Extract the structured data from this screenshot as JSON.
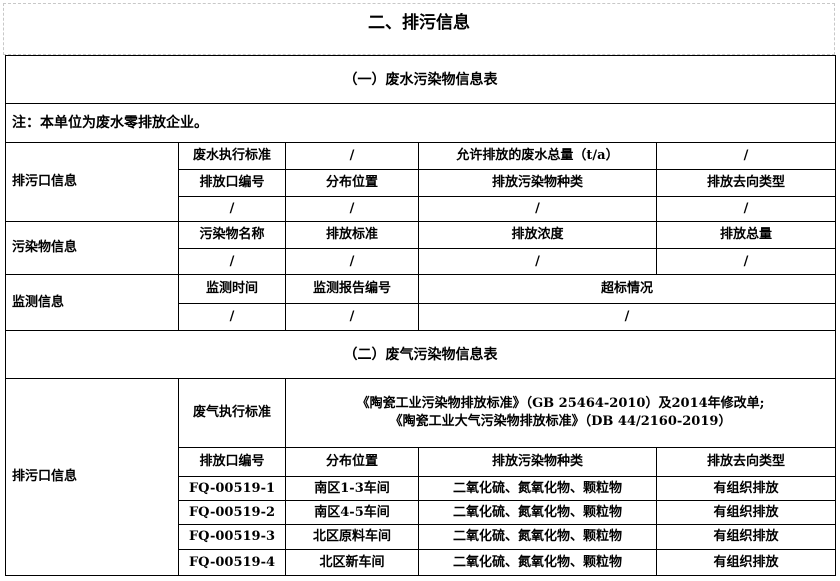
{
  "title": "二、排污信息",
  "wastewater": {
    "header": "（一）废水污染物信息表",
    "note": "注：本单位为废水零排放企业。",
    "outlet_label": "排污口信息",
    "standard_label": "废水执行标准",
    "standard_value": "/",
    "total_label": "允许排放的废水总量（t/a）",
    "total_value": "/",
    "outlet_cols": [
      "排放口编号",
      "分布位置",
      "排放污染物种类",
      "排放去向类型"
    ],
    "outlet_vals": [
      "/",
      "/",
      "/",
      "/"
    ],
    "pollutant_label": "污染物信息",
    "pollutant_cols": [
      "污染物名称",
      "排放标准",
      "排放浓度",
      "排放总量"
    ],
    "pollutant_vals": [
      "/",
      "/",
      "/",
      "/"
    ],
    "monitor_label": "监测信息",
    "monitor_cols": [
      "监测时间",
      "监测报告编号",
      "超标情况"
    ],
    "monitor_vals": [
      "/",
      "/",
      "/"
    ]
  },
  "exhaust": {
    "header": "（二）废气污染物信息表",
    "outlet_label": "排污口信息",
    "standard_label": "废气执行标准",
    "standard_lines": [
      "《陶瓷工业污染物排放标准》（GB 25464-2010）及2014年修改单;",
      "《陶瓷工业大气污染物排放标准》（DB 44/2160-2019）"
    ],
    "cols": [
      "排放口编号",
      "分布位置",
      "排放污染物种类",
      "排放去向类型"
    ],
    "rows": [
      [
        "FQ-00519-1",
        "南区1-3车间",
        "二氧化硫、氮氧化物、颗粒物",
        "有组织排放"
      ],
      [
        "FQ-00519-2",
        "南区4-5车间",
        "二氧化硫、氮氧化物、颗粒物",
        "有组织排放"
      ],
      [
        "FQ-00519-3",
        "北区原料车间",
        "二氧化硫、氮氧化物、颗粒物",
        "有组织排放"
      ],
      [
        "FQ-00519-4",
        "北区新车间",
        "二氧化硫、氮氧化物、颗粒物",
        "有组织排放"
      ]
    ]
  }
}
